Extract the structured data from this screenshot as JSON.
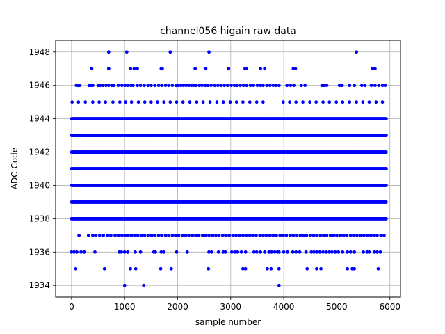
{
  "chart_data": {
    "type": "scatter",
    "title": "channel056 higain raw data",
    "xlabel": "sample number",
    "ylabel": "ADC Code",
    "xlim": [
      -300,
      6200
    ],
    "ylim": [
      1933.3,
      1948.7
    ],
    "xticks": [
      0,
      1000,
      2000,
      3000,
      4000,
      5000,
      6000
    ],
    "yticks": [
      1934,
      1936,
      1938,
      1940,
      1942,
      1944,
      1946,
      1948
    ],
    "grid": true,
    "marker_color": "#0000ff",
    "sample_count": 5940,
    "dense_levels": [
      1938,
      1939,
      1940,
      1941,
      1942,
      1943,
      1944
    ],
    "sparse_levels": [
      {
        "y": 1945,
        "x": [
          10,
          130,
          260,
          400,
          520,
          640,
          780,
          910,
          1020,
          1130,
          1260,
          1380,
          1500,
          1620,
          1740,
          1860,
          1980,
          2100,
          2230,
          2360,
          2480,
          2610,
          2740,
          2860,
          2990,
          3110,
          3230,
          3360,
          3490,
          3610,
          3990,
          4110,
          4230,
          4360,
          4490,
          4610,
          4740,
          4860,
          4990,
          5110,
          5240,
          5370,
          5490,
          5610,
          5740,
          5860
        ]
      },
      {
        "y": 1946,
        "x": [
          90,
          120,
          150,
          330,
          360,
          400,
          500,
          540,
          590,
          650,
          700,
          760,
          800,
          880,
          950,
          1010,
          1060,
          1120,
          1160,
          1240,
          1300,
          1370,
          1440,
          1500,
          1570,
          1640,
          1700,
          1770,
          1830,
          1900,
          1970,
          2010,
          2060,
          2110,
          2160,
          2210,
          2260,
          2300,
          2350,
          2410,
          2460,
          2520,
          2570,
          2630,
          2700,
          2760,
          2820,
          2880,
          2940,
          3010,
          3070,
          3120,
          3180,
          3240,
          3300,
          3370,
          3430,
          3500,
          3560,
          3610,
          3680,
          3740,
          3800,
          3850,
          3910,
          4060,
          4130,
          4190,
          4330,
          4400,
          4720,
          4760,
          4810,
          5050,
          5100,
          5240,
          5330,
          5470,
          5530,
          5650,
          5720,
          5790,
          5860,
          5910
        ]
      },
      {
        "y": 1947,
        "x": [
          380,
          700,
          1110,
          1180,
          1240,
          1690,
          1710,
          2330,
          2530,
          2960,
          3270,
          3300,
          3560,
          3640,
          4180,
          4220,
          5670,
          5720
        ]
      },
      {
        "y": 1948,
        "x": [
          700,
          1040,
          1860,
          2590,
          5370
        ]
      },
      {
        "y": 1937,
        "x": [
          140,
          320,
          400,
          460,
          530,
          600,
          680,
          740,
          820,
          880,
          950,
          1010,
          1070,
          1130,
          1190,
          1250,
          1320,
          1380,
          1450,
          1510,
          1570,
          1640,
          1700,
          1770,
          1830,
          1900,
          1960,
          2020,
          2090,
          2150,
          2210,
          2280,
          2340,
          2400,
          2470,
          2530,
          2590,
          2660,
          2720,
          2780,
          2850,
          2910,
          2970,
          3040,
          3100,
          3160,
          3230,
          3290,
          3360,
          3420,
          3480,
          3550,
          3610,
          3670,
          3740,
          3800,
          3860,
          3930,
          3990,
          4050,
          4120,
          4180,
          4240,
          4310,
          4370,
          4430,
          4500,
          4560,
          4620,
          4690,
          4750,
          4810,
          4880,
          4940,
          5000,
          5070,
          5130,
          5190,
          5260,
          5320,
          5380,
          5450,
          5510,
          5570,
          5640,
          5700,
          5760,
          5830,
          5890
        ]
      },
      {
        "y": 1936,
        "x": [
          0,
          50,
          100,
          180,
          240,
          440,
          900,
          940,
          1000,
          1060,
          1200,
          1300,
          1550,
          1580,
          1690,
          1740,
          1980,
          2180,
          2590,
          2640,
          2770,
          2860,
          2900,
          3020,
          3080,
          3130,
          3200,
          3280,
          3440,
          3490,
          3560,
          3640,
          3720,
          3770,
          3830,
          3880,
          3910,
          4000,
          4070,
          4170,
          4230,
          4300,
          4420,
          4520,
          4570,
          4620,
          4680,
          4740,
          4800,
          4860,
          4910,
          4970,
          5030,
          5110,
          5200,
          5260,
          5330,
          5500,
          5570,
          5610,
          5710,
          5760,
          5820
        ]
      },
      {
        "y": 1935,
        "x": [
          80,
          620,
          1110,
          1210,
          1680,
          1880,
          2580,
          3230,
          3280,
          3690,
          3760,
          3910,
          4440,
          4620,
          4700,
          5200,
          5290,
          5330,
          5780
        ]
      },
      {
        "y": 1934,
        "x": [
          1000,
          1360,
          3910
        ]
      }
    ]
  }
}
